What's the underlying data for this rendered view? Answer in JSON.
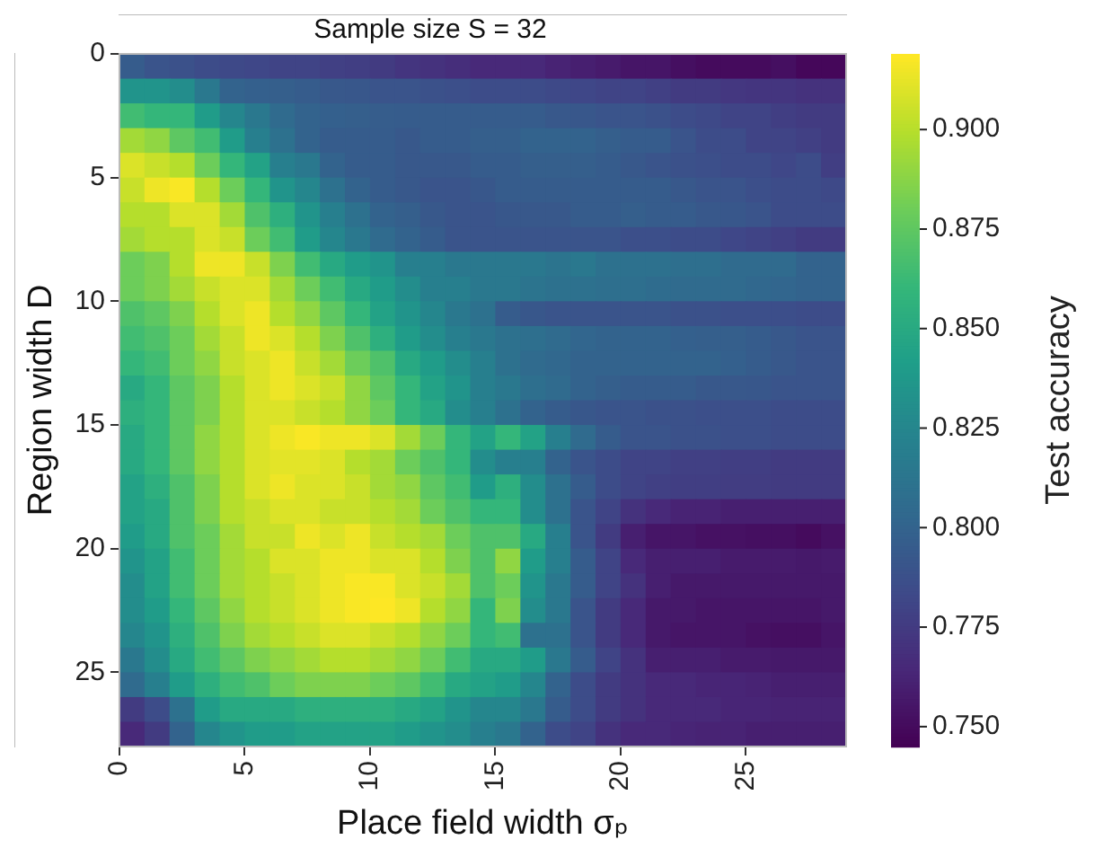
{
  "chart_data": {
    "type": "heatmap",
    "title": "Sample size S = 32",
    "xlabel": "Place field width σₚ",
    "ylabel": "Region width D",
    "clabel": "Test accuracy",
    "xlim": [
      0,
      29
    ],
    "ylim": [
      28,
      0
    ],
    "xticks": [
      0,
      5,
      10,
      15,
      20,
      25
    ],
    "yticks": [
      0,
      5,
      10,
      15,
      20,
      25
    ],
    "clim": [
      0.745,
      0.919
    ],
    "cticks": [
      {
        "value": 0.75,
        "label": "0.750"
      },
      0.775,
      {
        "value": 0.8,
        "label": "0.800"
      },
      0.825,
      {
        "value": 0.85,
        "label": "0.850"
      },
      0.875,
      {
        "value": 0.9,
        "label": "0.900"
      }
    ],
    "cells": [
      [
        0.795,
        0.79,
        0.788,
        0.785,
        0.783,
        0.782,
        0.78,
        0.78,
        0.778,
        0.777,
        0.775,
        0.772,
        0.77,
        0.768,
        0.765,
        0.765,
        0.765,
        0.762,
        0.76,
        0.758,
        0.755,
        0.755,
        0.752,
        0.75,
        0.75,
        0.75,
        0.752,
        0.748,
        0.748
      ],
      [
        0.835,
        0.835,
        0.83,
        0.815,
        0.8,
        0.798,
        0.797,
        0.795,
        0.793,
        0.792,
        0.79,
        0.79,
        0.788,
        0.787,
        0.785,
        0.785,
        0.785,
        0.783,
        0.782,
        0.78,
        0.78,
        0.778,
        0.775,
        0.775,
        0.773,
        0.772,
        0.772,
        0.77,
        0.77
      ],
      [
        0.865,
        0.86,
        0.86,
        0.84,
        0.825,
        0.815,
        0.805,
        0.8,
        0.798,
        0.797,
        0.796,
        0.795,
        0.795,
        0.795,
        0.795,
        0.795,
        0.795,
        0.793,
        0.792,
        0.79,
        0.79,
        0.788,
        0.785,
        0.783,
        0.78,
        0.78,
        0.777,
        0.775,
        0.775
      ],
      [
        0.895,
        0.89,
        0.875,
        0.865,
        0.84,
        0.82,
        0.81,
        0.8,
        0.795,
        0.795,
        0.795,
        0.793,
        0.795,
        0.795,
        0.797,
        0.797,
        0.8,
        0.8,
        0.8,
        0.797,
        0.795,
        0.795,
        0.79,
        0.785,
        0.785,
        0.78,
        0.78,
        0.778,
        0.775
      ],
      [
        0.91,
        0.905,
        0.9,
        0.88,
        0.86,
        0.845,
        0.82,
        0.815,
        0.8,
        0.795,
        0.795,
        0.793,
        0.793,
        0.793,
        0.795,
        0.795,
        0.797,
        0.797,
        0.797,
        0.795,
        0.793,
        0.79,
        0.788,
        0.787,
        0.785,
        0.785,
        0.782,
        0.785,
        0.777
      ],
      [
        0.905,
        0.915,
        0.918,
        0.9,
        0.88,
        0.86,
        0.835,
        0.825,
        0.81,
        0.8,
        0.795,
        0.793,
        0.79,
        0.79,
        0.792,
        0.795,
        0.795,
        0.795,
        0.795,
        0.795,
        0.795,
        0.795,
        0.793,
        0.79,
        0.79,
        0.787,
        0.785,
        0.785,
        0.783
      ],
      [
        0.9,
        0.9,
        0.91,
        0.91,
        0.895,
        0.87,
        0.855,
        0.835,
        0.82,
        0.81,
        0.8,
        0.797,
        0.793,
        0.79,
        0.79,
        0.792,
        0.793,
        0.793,
        0.795,
        0.795,
        0.797,
        0.795,
        0.795,
        0.793,
        0.792,
        0.79,
        0.785,
        0.785,
        0.785
      ],
      [
        0.895,
        0.9,
        0.9,
        0.91,
        0.905,
        0.88,
        0.865,
        0.84,
        0.825,
        0.815,
        0.805,
        0.8,
        0.795,
        0.79,
        0.79,
        0.79,
        0.79,
        0.79,
        0.79,
        0.79,
        0.787,
        0.787,
        0.785,
        0.785,
        0.782,
        0.78,
        0.778,
        0.775,
        0.775
      ],
      [
        0.88,
        0.885,
        0.9,
        0.915,
        0.915,
        0.905,
        0.885,
        0.865,
        0.85,
        0.84,
        0.835,
        0.82,
        0.82,
        0.815,
        0.815,
        0.815,
        0.815,
        0.812,
        0.815,
        0.81,
        0.81,
        0.81,
        0.808,
        0.808,
        0.805,
        0.805,
        0.805,
        0.8,
        0.8
      ],
      [
        0.88,
        0.885,
        0.895,
        0.905,
        0.91,
        0.91,
        0.895,
        0.88,
        0.865,
        0.85,
        0.84,
        0.83,
        0.82,
        0.82,
        0.815,
        0.815,
        0.812,
        0.81,
        0.81,
        0.808,
        0.808,
        0.806,
        0.805,
        0.805,
        0.805,
        0.803,
        0.802,
        0.8,
        0.8
      ],
      [
        0.87,
        0.875,
        0.885,
        0.9,
        0.91,
        0.915,
        0.9,
        0.89,
        0.875,
        0.86,
        0.845,
        0.835,
        0.825,
        0.815,
        0.81,
        0.795,
        0.792,
        0.79,
        0.79,
        0.79,
        0.79,
        0.79,
        0.788,
        0.788,
        0.787,
        0.787,
        0.786,
        0.785,
        0.785
      ],
      [
        0.865,
        0.87,
        0.88,
        0.895,
        0.905,
        0.915,
        0.91,
        0.9,
        0.885,
        0.87,
        0.855,
        0.84,
        0.83,
        0.82,
        0.815,
        0.81,
        0.808,
        0.805,
        0.802,
        0.8,
        0.8,
        0.8,
        0.798,
        0.797,
        0.797,
        0.795,
        0.793,
        0.79,
        0.79
      ],
      [
        0.86,
        0.865,
        0.88,
        0.89,
        0.905,
        0.91,
        0.915,
        0.905,
        0.895,
        0.88,
        0.87,
        0.85,
        0.84,
        0.83,
        0.82,
        0.81,
        0.805,
        0.803,
        0.8,
        0.8,
        0.8,
        0.8,
        0.8,
        0.8,
        0.798,
        0.795,
        0.793,
        0.79,
        0.79
      ],
      [
        0.85,
        0.86,
        0.875,
        0.885,
        0.9,
        0.91,
        0.915,
        0.91,
        0.905,
        0.89,
        0.875,
        0.86,
        0.845,
        0.835,
        0.82,
        0.815,
        0.808,
        0.805,
        0.8,
        0.797,
        0.795,
        0.795,
        0.795,
        0.793,
        0.793,
        0.792,
        0.79,
        0.79,
        0.79
      ],
      [
        0.855,
        0.86,
        0.875,
        0.885,
        0.9,
        0.91,
        0.91,
        0.905,
        0.9,
        0.89,
        0.88,
        0.86,
        0.85,
        0.83,
        0.82,
        0.81,
        0.8,
        0.795,
        0.792,
        0.79,
        0.79,
        0.788,
        0.788,
        0.787,
        0.787,
        0.787,
        0.785,
        0.785,
        0.785
      ],
      [
        0.85,
        0.86,
        0.875,
        0.89,
        0.9,
        0.91,
        0.915,
        0.918,
        0.915,
        0.915,
        0.91,
        0.895,
        0.88,
        0.86,
        0.845,
        0.86,
        0.845,
        0.82,
        0.805,
        0.795,
        0.79,
        0.79,
        0.788,
        0.788,
        0.787,
        0.787,
        0.785,
        0.785,
        0.785
      ],
      [
        0.85,
        0.86,
        0.875,
        0.89,
        0.9,
        0.91,
        0.912,
        0.912,
        0.91,
        0.9,
        0.895,
        0.88,
        0.87,
        0.86,
        0.83,
        0.82,
        0.82,
        0.8,
        0.79,
        0.785,
        0.78,
        0.78,
        0.778,
        0.778,
        0.777,
        0.777,
        0.775,
        0.775,
        0.775
      ],
      [
        0.845,
        0.855,
        0.87,
        0.885,
        0.9,
        0.91,
        0.915,
        0.91,
        0.91,
        0.905,
        0.895,
        0.89,
        0.875,
        0.865,
        0.84,
        0.855,
        0.83,
        0.81,
        0.795,
        0.785,
        0.78,
        0.778,
        0.777,
        0.777,
        0.776,
        0.776,
        0.775,
        0.775,
        0.775
      ],
      [
        0.845,
        0.85,
        0.87,
        0.885,
        0.9,
        0.905,
        0.91,
        0.91,
        0.905,
        0.905,
        0.9,
        0.895,
        0.88,
        0.87,
        0.86,
        0.86,
        0.83,
        0.81,
        0.79,
        0.78,
        0.77,
        0.765,
        0.762,
        0.762,
        0.76,
        0.76,
        0.76,
        0.76,
        0.76
      ],
      [
        0.84,
        0.85,
        0.87,
        0.88,
        0.895,
        0.905,
        0.905,
        0.915,
        0.91,
        0.915,
        0.905,
        0.9,
        0.895,
        0.88,
        0.87,
        0.87,
        0.85,
        0.82,
        0.79,
        0.775,
        0.76,
        0.755,
        0.755,
        0.753,
        0.753,
        0.752,
        0.752,
        0.75,
        0.753
      ],
      [
        0.835,
        0.845,
        0.865,
        0.88,
        0.895,
        0.9,
        0.91,
        0.91,
        0.915,
        0.915,
        0.91,
        0.91,
        0.9,
        0.885,
        0.87,
        0.89,
        0.84,
        0.82,
        0.795,
        0.78,
        0.765,
        0.76,
        0.76,
        0.76,
        0.758,
        0.758,
        0.758,
        0.757,
        0.758
      ],
      [
        0.83,
        0.845,
        0.865,
        0.88,
        0.895,
        0.9,
        0.905,
        0.91,
        0.915,
        0.918,
        0.918,
        0.91,
        0.905,
        0.895,
        0.87,
        0.88,
        0.835,
        0.815,
        0.795,
        0.78,
        0.77,
        0.76,
        0.757,
        0.757,
        0.757,
        0.757,
        0.757,
        0.757,
        0.757
      ],
      [
        0.83,
        0.84,
        0.86,
        0.875,
        0.89,
        0.9,
        0.905,
        0.91,
        0.915,
        0.918,
        0.919,
        0.915,
        0.9,
        0.89,
        0.86,
        0.885,
        0.83,
        0.815,
        0.79,
        0.775,
        0.765,
        0.757,
        0.757,
        0.755,
        0.755,
        0.755,
        0.755,
        0.755,
        0.757
      ],
      [
        0.825,
        0.835,
        0.855,
        0.87,
        0.885,
        0.895,
        0.9,
        0.905,
        0.91,
        0.91,
        0.905,
        0.9,
        0.89,
        0.88,
        0.86,
        0.865,
        0.81,
        0.81,
        0.79,
        0.775,
        0.765,
        0.757,
        0.755,
        0.755,
        0.755,
        0.753,
        0.752,
        0.752,
        0.755
      ],
      [
        0.815,
        0.83,
        0.85,
        0.865,
        0.875,
        0.885,
        0.89,
        0.895,
        0.9,
        0.9,
        0.895,
        0.89,
        0.88,
        0.865,
        0.85,
        0.85,
        0.84,
        0.815,
        0.795,
        0.78,
        0.77,
        0.76,
        0.76,
        0.76,
        0.758,
        0.758,
        0.757,
        0.757,
        0.757
      ],
      [
        0.805,
        0.82,
        0.84,
        0.855,
        0.865,
        0.87,
        0.88,
        0.885,
        0.885,
        0.885,
        0.88,
        0.875,
        0.865,
        0.85,
        0.845,
        0.84,
        0.825,
        0.8,
        0.785,
        0.775,
        0.77,
        0.765,
        0.765,
        0.763,
        0.763,
        0.762,
        0.76,
        0.76,
        0.76
      ],
      [
        0.775,
        0.785,
        0.81,
        0.84,
        0.85,
        0.85,
        0.85,
        0.855,
        0.855,
        0.855,
        0.855,
        0.85,
        0.845,
        0.835,
        0.825,
        0.825,
        0.815,
        0.795,
        0.785,
        0.775,
        0.77,
        0.765,
        0.765,
        0.765,
        0.763,
        0.763,
        0.762,
        0.762,
        0.762
      ],
      [
        0.765,
        0.775,
        0.8,
        0.825,
        0.835,
        0.84,
        0.84,
        0.845,
        0.845,
        0.845,
        0.845,
        0.84,
        0.835,
        0.83,
        0.82,
        0.815,
        0.8,
        0.785,
        0.78,
        0.77,
        0.765,
        0.765,
        0.763,
        0.762,
        0.762,
        0.76,
        0.76,
        0.76,
        0.76
      ]
    ]
  }
}
